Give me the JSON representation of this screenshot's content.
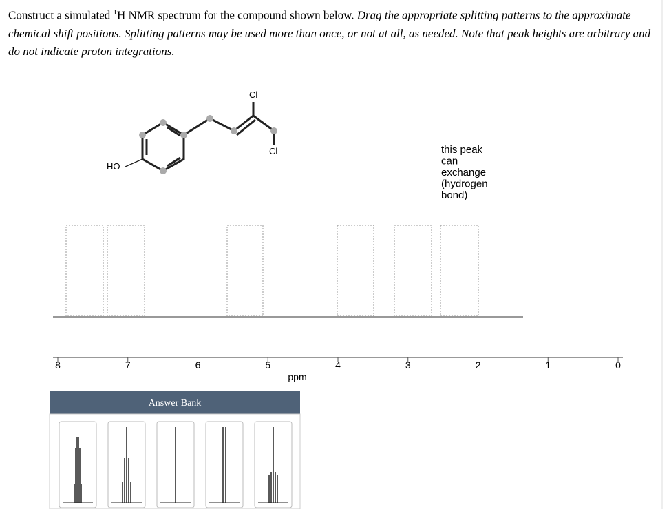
{
  "instructions": {
    "plain_start": "Construct a simulated ",
    "superscript": "1",
    "plain_end": "H NMR spectrum for the compound shown below. ",
    "italic": "Drag the appropriate splitting patterns to the approximate chemical shift positions. Splitting patterns may be used more than once, or not at all, as needed. Note that peak heights are arbitrary and do not indicate proton integrations."
  },
  "molecule": {
    "hydroxyl": "HO",
    "chlorine_top": "Cl",
    "chlorine_bottom": "Cl"
  },
  "annotation": {
    "lines": [
      "this peak",
      "can",
      "exchange",
      "(hydrogen",
      "bond)"
    ]
  },
  "spectrum": {
    "axis_ticks": [
      8,
      7,
      6,
      5,
      4,
      3,
      2,
      1,
      0
    ],
    "axis_label": "ppm"
  },
  "answer_bank": {
    "title": "Answer Bank"
  }
}
